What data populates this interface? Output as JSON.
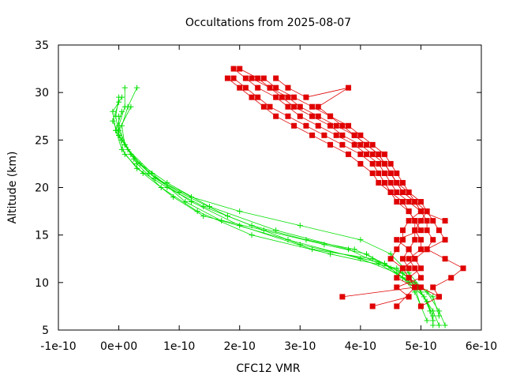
{
  "chart_data": {
    "type": "line",
    "title": "Occultations from 2025-08-07",
    "xlabel": "CFC12 VMR",
    "ylabel": "Altitude (km)",
    "xlim": [
      -1e-10,
      6e-10
    ],
    "ylim": [
      5,
      35
    ],
    "x_ticks": [
      "-1e-10",
      "0e+00",
      "1e-10",
      "2e-10",
      "3e-10",
      "4e-10",
      "5e-10",
      "6e-10"
    ],
    "y_ticks": [
      "5",
      "10",
      "15",
      "20",
      "25",
      "30",
      "35"
    ],
    "grid": false,
    "legend": "none",
    "colors": {
      "green": "#00e000",
      "red": "#e00000"
    },
    "series": [
      {
        "color": "green",
        "marker": "plus",
        "points": [
          [
            5.2e-10,
            5.5
          ],
          [
            5.2e-10,
            6.5
          ],
          [
            5.1e-10,
            8
          ],
          [
            4.9e-10,
            10
          ],
          [
            4.6e-10,
            11.5
          ],
          [
            3.5e-10,
            13
          ],
          [
            2.2e-10,
            15
          ],
          [
            1.3e-10,
            17.5
          ],
          [
            7e-11,
            20
          ],
          [
            3e-11,
            22.5
          ],
          [
            1e-11,
            24.5
          ],
          [
            5e-12,
            26.5
          ],
          [
            1.5e-11,
            28.5
          ],
          [
            3e-11,
            30.5
          ]
        ]
      },
      {
        "color": "green",
        "marker": "plus",
        "points": [
          [
            5.3e-10,
            5.5
          ],
          [
            5.2e-10,
            7
          ],
          [
            5e-10,
            9
          ],
          [
            4.8e-10,
            10.5
          ],
          [
            4.4e-10,
            12
          ],
          [
            3e-10,
            14
          ],
          [
            1.8e-10,
            17
          ],
          [
            1e-10,
            19.5
          ],
          [
            5e-11,
            21.5
          ],
          [
            2e-11,
            23.5
          ],
          [
            0.0,
            25.5
          ],
          [
            -5e-12,
            27.5
          ],
          [
            0.0,
            29.5
          ]
        ]
      },
      {
        "color": "green",
        "marker": "plus",
        "points": [
          [
            5.4e-10,
            5.5
          ],
          [
            5.3e-10,
            7
          ],
          [
            5.1e-10,
            9
          ],
          [
            4.7e-10,
            11
          ],
          [
            4.2e-10,
            12.5
          ],
          [
            3.2e-10,
            13.5
          ],
          [
            2e-10,
            16
          ],
          [
            1.2e-10,
            18.5
          ],
          [
            6e-11,
            21
          ],
          [
            2.5e-11,
            23
          ],
          [
            5e-12,
            25
          ],
          [
            -1e-11,
            27
          ],
          [
            0.0,
            29
          ]
        ]
      },
      {
        "color": "green",
        "marker": "plus",
        "points": [
          [
            5.1e-10,
            6
          ],
          [
            5e-10,
            7.5
          ],
          [
            4.9e-10,
            9.5
          ],
          [
            4.7e-10,
            10.5
          ],
          [
            4.3e-10,
            12
          ],
          [
            3.8e-10,
            13.5
          ],
          [
            2.6e-10,
            15.5
          ],
          [
            1.5e-10,
            18
          ],
          [
            8e-11,
            20.5
          ],
          [
            3.5e-11,
            22.5
          ],
          [
            1e-11,
            24.5
          ],
          [
            0.0,
            26.5
          ],
          [
            1e-11,
            28.5
          ],
          [
            1e-11,
            30.5
          ]
        ]
      },
      {
        "color": "green",
        "marker": "plus",
        "points": [
          [
            5.2e-10,
            6
          ],
          [
            5.1e-10,
            8
          ],
          [
            4.95e-10,
            9.5
          ],
          [
            4.6e-10,
            11
          ],
          [
            4e-10,
            12.5
          ],
          [
            2.8e-10,
            14.5
          ],
          [
            1.7e-10,
            16.5
          ],
          [
            1.1e-10,
            18.5
          ],
          [
            5.5e-11,
            21.5
          ],
          [
            1.5e-11,
            24
          ],
          [
            -5e-12,
            26
          ],
          [
            -1e-11,
            28
          ],
          [
            5e-12,
            29.5
          ]
        ]
      },
      {
        "color": "green",
        "marker": "plus",
        "points": [
          [
            5.3e-10,
            6.5
          ],
          [
            5.2e-10,
            8.5
          ],
          [
            5e-10,
            9.5
          ],
          [
            4.8e-10,
            11
          ],
          [
            4.5e-10,
            13
          ],
          [
            4e-10,
            14.5
          ],
          [
            3e-10,
            16
          ],
          [
            2e-10,
            17.5
          ],
          [
            1.2e-10,
            19
          ],
          [
            6e-11,
            21
          ],
          [
            2e-11,
            23.5
          ],
          [
            0.0,
            26
          ],
          [
            2e-11,
            28.5
          ]
        ]
      },
      {
        "color": "green",
        "marker": "plus",
        "points": [
          [
            5.15e-10,
            7
          ],
          [
            5.05e-10,
            8.5
          ],
          [
            4.8e-10,
            10
          ],
          [
            4.5e-10,
            11.5
          ],
          [
            4.1e-10,
            13
          ],
          [
            3.4e-10,
            14
          ],
          [
            2.4e-10,
            15.5
          ],
          [
            1.4e-10,
            17
          ],
          [
            9e-11,
            19
          ],
          [
            4e-11,
            21.5
          ],
          [
            1e-11,
            23.5
          ],
          [
            0.0,
            25.5
          ],
          [
            0.0,
            27.5
          ]
        ]
      },
      {
        "color": "green",
        "marker": "plus",
        "points": [
          [
            5e-10,
            7.5
          ],
          [
            4.9e-10,
            9
          ],
          [
            4.7e-10,
            10.5
          ],
          [
            4.4e-10,
            12
          ],
          [
            3.9e-10,
            13.5
          ],
          [
            3.1e-10,
            14.5
          ],
          [
            2.2e-10,
            16
          ],
          [
            1.4e-10,
            18
          ],
          [
            8e-11,
            20
          ],
          [
            3e-11,
            22
          ],
          [
            5e-12,
            24
          ],
          [
            -5e-12,
            26
          ],
          [
            5e-12,
            28
          ]
        ]
      },
      {
        "color": "red",
        "marker": "square",
        "points": [
          [
            1.9e-10,
            32.5
          ],
          [
            2.1e-10,
            31.5
          ],
          [
            2.3e-10,
            30.5
          ],
          [
            2.6e-10,
            29.5
          ],
          [
            2.8e-10,
            28.5
          ],
          [
            3e-10,
            27.5
          ],
          [
            3.3e-10,
            26.5
          ],
          [
            3.6e-10,
            25.5
          ],
          [
            3.9e-10,
            24.5
          ],
          [
            4.1e-10,
            23.5
          ],
          [
            4.3e-10,
            22.5
          ],
          [
            4.4e-10,
            21.5
          ],
          [
            4.5e-10,
            20.5
          ],
          [
            4.6e-10,
            19.5
          ],
          [
            4.8e-10,
            18.5
          ],
          [
            5e-10,
            17.5
          ],
          [
            5.4e-10,
            16.5
          ]
        ]
      },
      {
        "color": "red",
        "marker": "square",
        "points": [
          [
            1.8e-10,
            31.5
          ],
          [
            2e-10,
            30.5
          ],
          [
            2.2e-10,
            29.5
          ],
          [
            2.4e-10,
            28.5
          ],
          [
            2.6e-10,
            27.5
          ],
          [
            2.9e-10,
            26.5
          ],
          [
            3.2e-10,
            25.5
          ],
          [
            3.5e-10,
            24.5
          ],
          [
            3.8e-10,
            23.5
          ],
          [
            4e-10,
            22.5
          ],
          [
            4.2e-10,
            21.5
          ],
          [
            4.3e-10,
            20.5
          ],
          [
            4.5e-10,
            19.5
          ],
          [
            4.7e-10,
            18.5
          ],
          [
            4.8e-10,
            17.5
          ],
          [
            4.9e-10,
            16.5
          ],
          [
            4.9e-10,
            15.5
          ],
          [
            5e-10,
            14.5
          ],
          [
            5e-10,
            13.5
          ],
          [
            4.8e-10,
            12.5
          ],
          [
            4.9e-10,
            11.5
          ],
          [
            5e-10,
            10.5
          ],
          [
            4.6e-10,
            9.5
          ],
          [
            4.8e-10,
            8.5
          ],
          [
            4.2e-10,
            7.5
          ]
        ]
      },
      {
        "color": "red",
        "marker": "square",
        "points": [
          [
            2e-10,
            32.5
          ],
          [
            2.3e-10,
            31.5
          ],
          [
            2.5e-10,
            30.5
          ],
          [
            2.7e-10,
            29.5
          ],
          [
            2.9e-10,
            28.5
          ],
          [
            3.2e-10,
            27.5
          ],
          [
            3.5e-10,
            26.5
          ],
          [
            3.7e-10,
            25.5
          ],
          [
            4e-10,
            24.5
          ],
          [
            4.2e-10,
            23.5
          ],
          [
            4.4e-10,
            22.5
          ],
          [
            4.5e-10,
            21.5
          ],
          [
            4.6e-10,
            20.5
          ],
          [
            4.7e-10,
            19.5
          ],
          [
            4.9e-10,
            18.5
          ],
          [
            5e-10,
            17.5
          ],
          [
            5.1e-10,
            16.5
          ],
          [
            5.1e-10,
            15.5
          ],
          [
            5.2e-10,
            14.5
          ],
          [
            5.1e-10,
            13.5
          ],
          [
            5.4e-10,
            12.5
          ],
          [
            5.7e-10,
            11.5
          ],
          [
            5.5e-10,
            10.5
          ],
          [
            5.2e-10,
            9.5
          ],
          [
            5.3e-10,
            8.5
          ]
        ]
      },
      {
        "color": "red",
        "marker": "square",
        "points": [
          [
            2.2e-10,
            31.5
          ],
          [
            2.5e-10,
            30.5
          ],
          [
            2.8e-10,
            29.5
          ],
          [
            3e-10,
            28.5
          ],
          [
            3.3e-10,
            27.5
          ],
          [
            3.6e-10,
            26.5
          ],
          [
            3.9e-10,
            25.5
          ],
          [
            4.1e-10,
            24.5
          ],
          [
            4.3e-10,
            23.5
          ],
          [
            4.4e-10,
            22.5
          ],
          [
            4.5e-10,
            21.5
          ],
          [
            4.6e-10,
            20.5
          ],
          [
            4.7e-10,
            19.5
          ],
          [
            4.9e-10,
            18.5
          ],
          [
            5.1e-10,
            17.5
          ],
          [
            5.2e-10,
            16.5
          ],
          [
            5.3e-10,
            15.5
          ],
          [
            5.4e-10,
            14.5
          ],
          [
            5.1e-10,
            13.5
          ],
          [
            4.9e-10,
            12.5
          ],
          [
            4.7e-10,
            11.5
          ],
          [
            4.6e-10,
            10.5
          ],
          [
            4.9e-10,
            9.5
          ],
          [
            3.7e-10,
            8.5
          ]
        ]
      },
      {
        "color": "red",
        "marker": "square",
        "points": [
          [
            2.4e-10,
            31.5
          ],
          [
            2.6e-10,
            30.5
          ],
          [
            2.9e-10,
            29.5
          ],
          [
            3.2e-10,
            28.5
          ],
          [
            3.5e-10,
            27.5
          ],
          [
            3.8e-10,
            26.5
          ],
          [
            4e-10,
            25.5
          ],
          [
            4.2e-10,
            24.5
          ],
          [
            4.4e-10,
            23.5
          ],
          [
            4.5e-10,
            22.5
          ],
          [
            4.6e-10,
            21.5
          ],
          [
            4.7e-10,
            20.5
          ],
          [
            4.8e-10,
            19.5
          ],
          [
            4.9e-10,
            18.5
          ],
          [
            5e-10,
            17.5
          ],
          [
            4.8e-10,
            16.5
          ],
          [
            4.7e-10,
            15.5
          ],
          [
            4.7e-10,
            14.5
          ],
          [
            4.6e-10,
            13.5
          ],
          [
            4.5e-10,
            12.5
          ],
          [
            4.7e-10,
            11.5
          ],
          [
            4.8e-10,
            10.5
          ],
          [
            5e-10,
            9.5
          ],
          [
            5.3e-10,
            8.5
          ],
          [
            5e-10,
            7.5
          ]
        ]
      },
      {
        "color": "red",
        "marker": "square",
        "points": [
          [
            1.9e-10,
            31.5
          ],
          [
            2.1e-10,
            30.5
          ],
          [
            2.3e-10,
            29.5
          ],
          [
            2.5e-10,
            28.5
          ],
          [
            2.8e-10,
            27.5
          ],
          [
            3.1e-10,
            26.5
          ],
          [
            3.4e-10,
            25.5
          ],
          [
            3.7e-10,
            24.5
          ],
          [
            4e-10,
            23.5
          ],
          [
            4.2e-10,
            22.5
          ],
          [
            4.3e-10,
            21.5
          ],
          [
            4.4e-10,
            20.5
          ],
          [
            4.5e-10,
            19.5
          ],
          [
            4.6e-10,
            18.5
          ],
          [
            4.8e-10,
            17.5
          ],
          [
            4.9e-10,
            16.5
          ],
          [
            5e-10,
            15.5
          ],
          [
            4.6e-10,
            14.5
          ],
          [
            4.8e-10,
            13.5
          ],
          [
            4.9e-10,
            12.5
          ],
          [
            5e-10,
            11.5
          ],
          [
            4.8e-10,
            10.5
          ],
          [
            4.9e-10,
            9.5
          ],
          [
            4.6e-10,
            7.5
          ]
        ]
      },
      {
        "color": "red",
        "marker": "square",
        "points": [
          [
            2.6e-10,
            31.5
          ],
          [
            2.8e-10,
            30.5
          ],
          [
            3.1e-10,
            29.5
          ],
          [
            3.8e-10,
            30.5
          ],
          [
            3.3e-10,
            28.5
          ],
          [
            3.5e-10,
            27.5
          ],
          [
            3.7e-10,
            26.5
          ],
          [
            3.9e-10,
            25.5
          ],
          [
            4.1e-10,
            24.5
          ],
          [
            4.3e-10,
            23.5
          ],
          [
            4.4e-10,
            22.5
          ],
          [
            4.5e-10,
            21.5
          ],
          [
            4.6e-10,
            20.5
          ],
          [
            4.8e-10,
            19.5
          ],
          [
            5e-10,
            18.5
          ],
          [
            5.1e-10,
            17.5
          ],
          [
            5e-10,
            16.5
          ],
          [
            4.9e-10,
            15.5
          ],
          [
            4.9e-10,
            14.5
          ],
          [
            4.8e-10,
            13.5
          ],
          [
            4.7e-10,
            12.5
          ],
          [
            4.8e-10,
            11.5
          ]
        ]
      }
    ]
  }
}
